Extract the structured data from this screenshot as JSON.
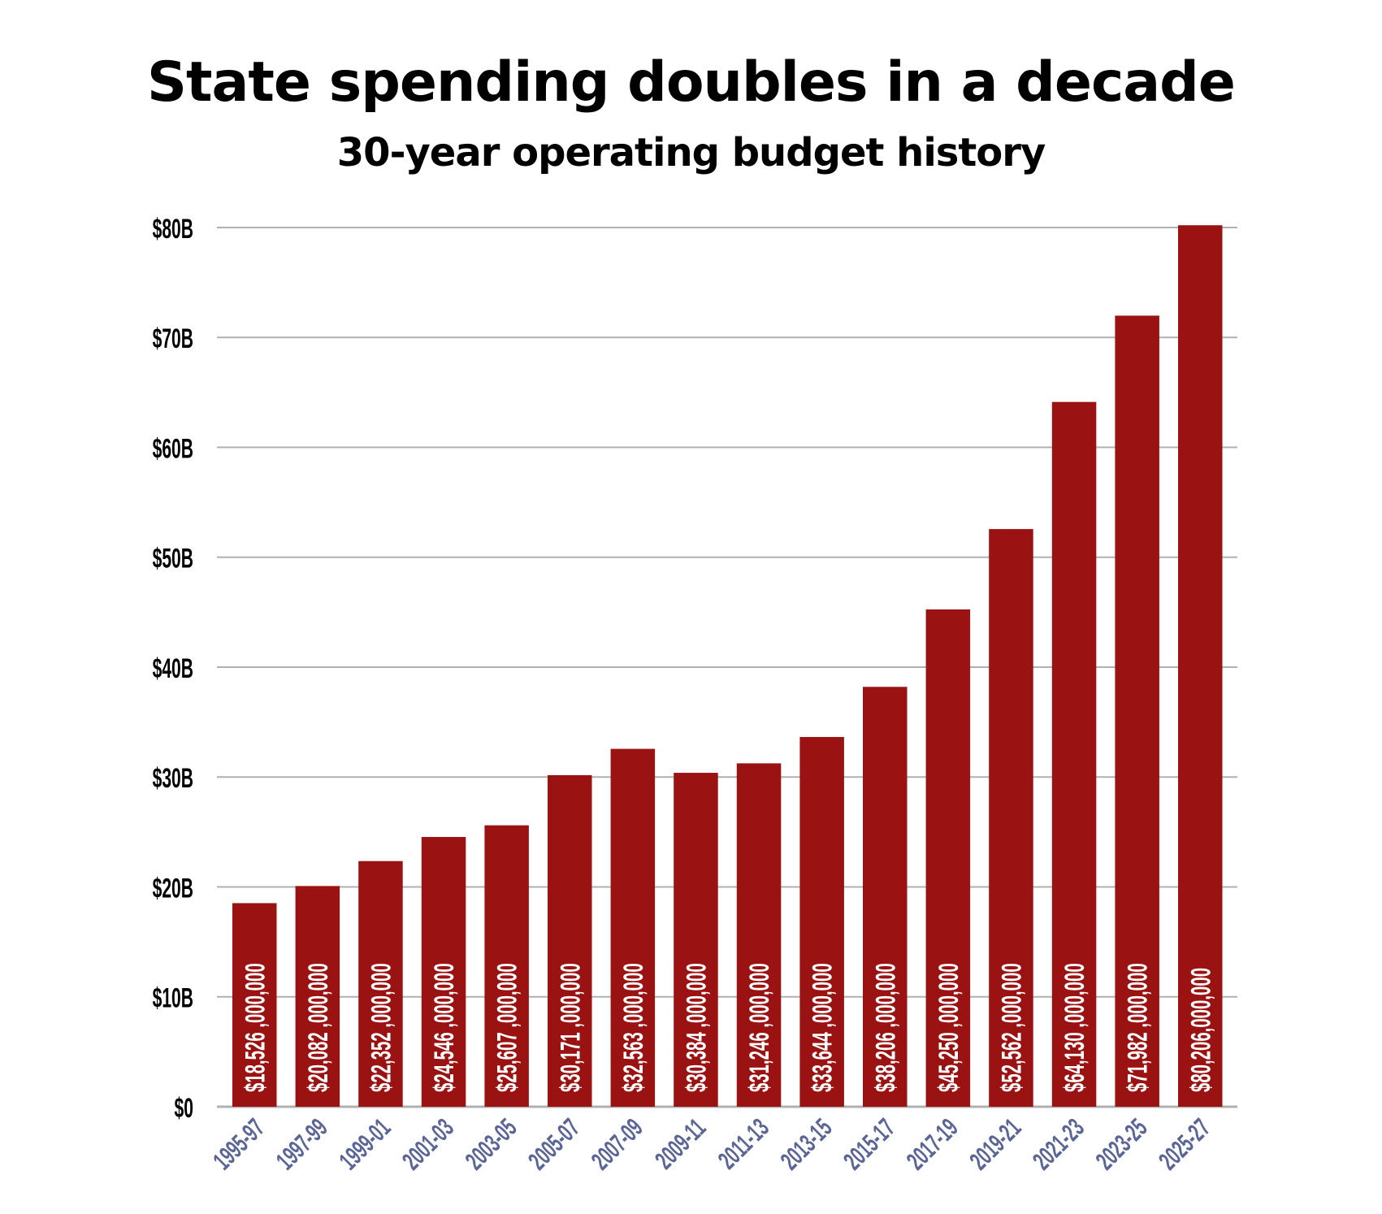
{
  "chart_data": {
    "type": "bar",
    "title": "State spending doubles in a decade",
    "subtitle": "30-year operating budget history",
    "xlabel": "",
    "ylabel": "",
    "ylim": [
      0,
      80000000000
    ],
    "grid": true,
    "y_ticks": [
      {
        "value": 0,
        "label": "$0"
      },
      {
        "value": 10000000000,
        "label": "$10B"
      },
      {
        "value": 20000000000,
        "label": "$20B"
      },
      {
        "value": 30000000000,
        "label": "$30B"
      },
      {
        "value": 40000000000,
        "label": "$40B"
      },
      {
        "value": 50000000000,
        "label": "$50B"
      },
      {
        "value": 60000000000,
        "label": "$60B"
      },
      {
        "value": 70000000000,
        "label": "$70B"
      },
      {
        "value": 80000000000,
        "label": "$80B"
      }
    ],
    "categories": [
      "1995-97",
      "1997-99",
      "1999-01",
      "2001-03",
      "2003-05",
      "2005-07",
      "2007-09",
      "2009-11",
      "2011-13",
      "2013-15",
      "2015-17",
      "2017-19",
      "2019-21",
      "2021-23",
      "2023-25",
      "2025-27"
    ],
    "values": [
      18526000000,
      20082000000,
      22352000000,
      24546000000,
      25607000000,
      30171000000,
      32563000000,
      30384000000,
      31246000000,
      33644000000,
      38206000000,
      45250000000,
      52562000000,
      64130000000,
      71982000000,
      80206000000
    ],
    "data_labels": [
      "$18,526 ,000,000",
      "$20,082 ,000,000",
      "$22,352 ,000,000",
      "$24,546 ,000,000",
      "$25,607 ,000,000",
      "$30,171 ,000,000",
      "$32,563 ,000,000",
      "$30,384 ,000,000",
      "$31,246 ,000,000",
      "$33,644 ,000,000",
      "$38,206 ,000,000",
      "$45,250 ,000,000",
      "$52,562 ,000,000",
      "$64,130 ,000,000",
      "$71,982 ,000,000",
      "$80,206,000,000"
    ],
    "colors": {
      "bar": "#9a1212",
      "grid": "#b0b0b0",
      "x_tick_label": "#5b6596",
      "data_label": "#ffffff"
    }
  }
}
